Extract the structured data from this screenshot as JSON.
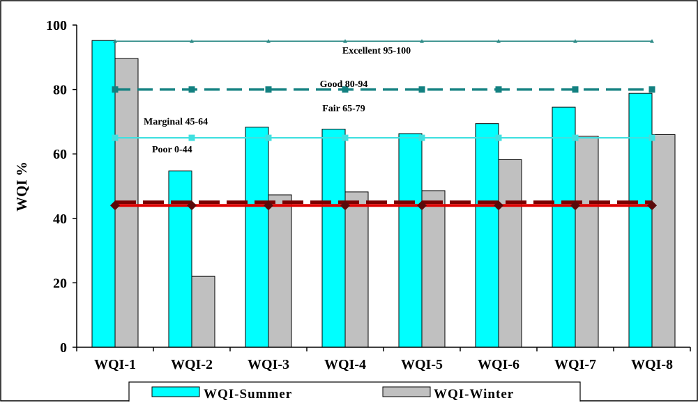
{
  "chart_data": {
    "type": "bar",
    "title": "",
    "xlabel": "",
    "ylabel": "WQI %",
    "ylim": [
      0,
      100
    ],
    "yticks": [
      0,
      20,
      40,
      60,
      80,
      100
    ],
    "grid": false,
    "legend_position": "bottom",
    "categories": [
      "WQI-1",
      "WQI-2",
      "WQI-3",
      "WQI-4",
      "WQI-5",
      "WQI-6",
      "WQI-7",
      "WQI-8"
    ],
    "series": [
      {
        "name": "WQI-Summer",
        "values": [
          95.2,
          54.7,
          68.3,
          67.7,
          66.3,
          69.4,
          74.5,
          78.8
        ],
        "color": "#00ffff"
      },
      {
        "name": "WQI-Winter",
        "values": [
          89.6,
          22.0,
          47.3,
          48.2,
          48.6,
          58.2,
          65.5,
          66.0
        ],
        "color": "#c0c0c0"
      }
    ],
    "threshold_lines": [
      {
        "value": 95,
        "color": "#2e8b87",
        "style": "solid-thin",
        "marker": "triangle"
      },
      {
        "value": 80,
        "color": "#128080",
        "style": "dashed",
        "marker": "square"
      },
      {
        "value": 65,
        "color": "#40e0e0",
        "style": "solid",
        "marker": "square"
      },
      {
        "value": 45,
        "color": "#7b0000",
        "style": "dashed",
        "marker": "none"
      },
      {
        "value": 44,
        "color": "#e00000",
        "style": "solid",
        "marker": "diamond"
      }
    ],
    "annotations": [
      "Excellent 95-100",
      "Good 80-94",
      "Fair 65-79",
      "Marginal 45-64",
      "Poor 0-44"
    ]
  }
}
